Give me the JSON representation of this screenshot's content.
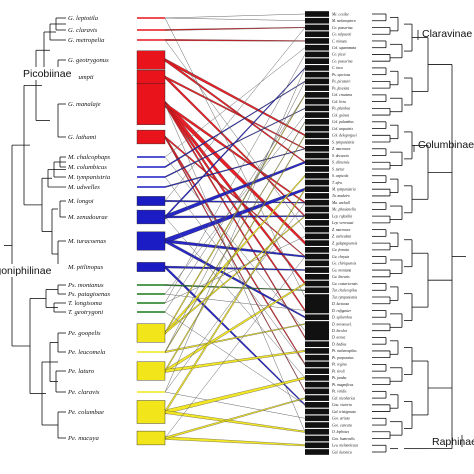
{
  "colors": {
    "Gallicolumba": "#e8131b",
    "Macropygia": "#1c1cc4",
    "Ptilinopus": "#1a7a1a",
    "Phapitreron": "#f2e61a",
    "thin_link": "#666666",
    "host_bar": "#111111"
  },
  "clade_labels": {
    "left": [
      "Picobiinae",
      "Trogoniphilinae"
    ],
    "right": [
      "Claravinae",
      "Columbinae",
      "Raphinae"
    ]
  },
  "parasites": [
    {
      "name": "G. leptotila",
      "group": "Gallicolumba",
      "size": 1
    },
    {
      "name": "G. claravis",
      "group": "Gallicolumba",
      "size": 1
    },
    {
      "name": "G. metropelia",
      "group": "Gallicolumba",
      "size": 1
    },
    {
      "name": "G. geotrygonus",
      "group": "Gallicolumba",
      "size": 4
    },
    {
      "name": "G. zumpti",
      "group": "Gallicolumba",
      "size": 3
    },
    {
      "name": "G. manalaje",
      "group": "Gallicolumba",
      "size": 9
    },
    {
      "name": "G. lathami",
      "group": "Gallicolumba",
      "size": 3
    },
    {
      "name": "M. chalcophaps",
      "group": "Macropygia",
      "size": 1
    },
    {
      "name": "M. columbicus",
      "group": "Macropygia",
      "size": 1
    },
    {
      "name": "M. tympanistria",
      "group": "Macropygia",
      "size": 1
    },
    {
      "name": "M. udwelles",
      "group": "Macropygia",
      "size": 1
    },
    {
      "name": "M. longoi",
      "group": "Macropygia",
      "size": 2
    },
    {
      "name": "M. zenadourae",
      "group": "Macropygia",
      "size": 3
    },
    {
      "name": "M. turacoenas",
      "group": "Macropygia",
      "size": 4
    },
    {
      "name": "M. ptilinopus",
      "group": "Macropygia",
      "size": 2
    },
    {
      "name": "Ps. montanus",
      "group": "Ptilinopus",
      "size": 1
    },
    {
      "name": "Ps. patagioenas",
      "group": "Ptilinopus",
      "size": 1
    },
    {
      "name": "T. longisoma",
      "group": "Ptilinopus",
      "size": 1
    },
    {
      "name": "T. geotrygoni",
      "group": "Ptilinopus",
      "size": 1
    },
    {
      "name": "Pe. goopelis",
      "group": "Phapitreron",
      "size": 4
    },
    {
      "name": "Pe. leucomela",
      "group": "Phapitreron",
      "size": 1
    },
    {
      "name": "Pe. laturo",
      "group": "Phapitreron",
      "size": 4
    },
    {
      "name": "Pe. claravis",
      "group": "Phapitreron",
      "size": 1
    },
    {
      "name": "Pe. columbae",
      "group": "Phapitreron",
      "size": 5
    },
    {
      "name": "Pe. mucuya",
      "group": "Phapitreron",
      "size": 3
    }
  ],
  "hosts": [
    "Mc. cecilae",
    "M. melanoptera",
    "Co. passerina",
    "Co. talpacoti",
    "C. minuta",
    "Col. squammata",
    "Co. picui",
    "Co. passerina",
    "C. inca",
    "Ps. speciosa",
    "Ps. picazuro",
    "Ps. fasciata",
    "Col. cruziana",
    "Col. livia",
    "Ps. plumbea",
    "Col. guinea",
    "Col. palumbus",
    "Col. arquatrix",
    "Col. delegorguei",
    "S. tympanistria",
    "Z. macroura",
    "S. decaocto",
    "S. chinensis",
    "S. turtur",
    "S. capicola",
    "T. afra",
    "M. tympanistria",
    "Tu. madeiro",
    "Ma. unchall",
    "Mc. phasianella",
    "Lep. rufaxilla",
    "Lep. verreauxi",
    "Z. macroura",
    "Z. auriculata",
    "Z. galapagoensis",
    "Gu. frenata",
    "Gu. chrysia",
    "Ge. chiriquensis",
    "Gu. montana",
    "Gu. linearis",
    "Gu. costaricensis",
    "Tur. chalcospilos",
    "Tur. tympanistria",
    "D. luctuosa",
    "D. rufigaster",
    "D. spilorrhoa",
    "D. novaeseel.",
    "D. bicolor",
    "D. aenea",
    "D. badius",
    "Pt. melanospilus",
    "Pt. purpuratus",
    "Pt. regina",
    "Pt. tivoli",
    "Pt. jambu",
    "Pt. magnificus",
    "Pt. viridis",
    "Cal. nicobarica",
    "Gou. victoria",
    "Gal. tristigmata",
    "Geo. striata",
    "Geo. cuneata",
    "O. lophotes",
    "Geo. humeralis",
    "Leu. melanoleuca",
    "Gal. luzonica"
  ]
}
